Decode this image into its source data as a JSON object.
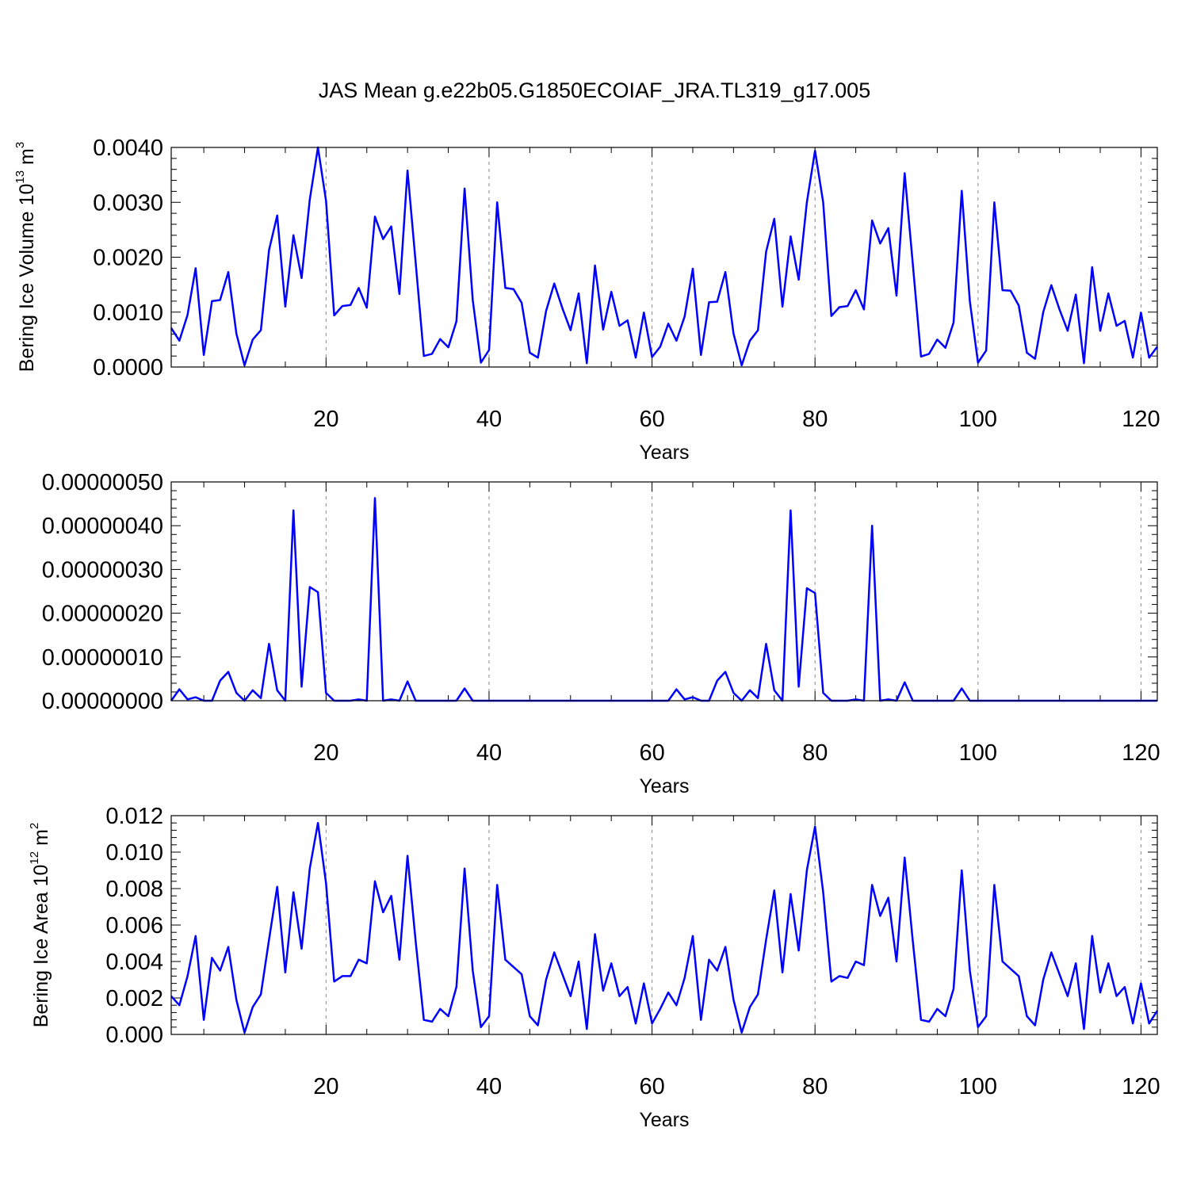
{
  "title": "JAS Mean g.e22b05.G1850ECOIAF_JRA.TL319_g17.005",
  "line_color": "#0000ff",
  "grid_color": "#888888",
  "chart_data": [
    {
      "type": "line",
      "ylabel_parts": [
        "Bering Ice Volume 10",
        "13",
        " m",
        "3"
      ],
      "xlabel": "Years",
      "xlim": [
        1,
        122
      ],
      "ylim": [
        0,
        0.004
      ],
      "x_ticks": [
        20,
        40,
        60,
        80,
        100,
        120
      ],
      "y_ticks": [
        0,
        0.001,
        0.002,
        0.003,
        0.004
      ],
      "y_tick_labels": [
        "0.0000",
        "0.0010",
        "0.0020",
        "0.0030",
        "0.0040"
      ],
      "grid": "vertical dashed at major x ticks",
      "series": [
        {
          "values": [
            0.00071,
            0.00048,
            0.00095,
            0.0018,
            0.00022,
            0.0012,
            0.00122,
            0.00173,
            0.00061,
            3e-05,
            0.0005,
            0.00067,
            0.00213,
            0.00276,
            0.0011,
            0.0024,
            0.00162,
            0.00305,
            0.004,
            0.00303,
            0.00094,
            0.00111,
            0.00113,
            0.00144,
            0.00108,
            0.00274,
            0.00233,
            0.00256,
            0.00133,
            0.00358,
            0.0019,
            0.0002,
            0.00024,
            0.00051,
            0.00036,
            0.00083,
            0.00325,
            0.00122,
            8e-05,
            0.00031,
            0.003,
            0.00144,
            0.00142,
            0.00117,
            0.00026,
            0.00017,
            0.00102,
            0.00152,
            0.00107,
            0.00067,
            0.00134,
            7e-05,
            0.00185,
            0.00068,
            0.00137,
            0.00075,
            0.00085,
            0.00017,
            0.00099,
            0.00018,
            0.00037,
            0.00079,
            0.00048,
            0.00092,
            0.00179,
            0.00022,
            0.00118,
            0.00119,
            0.00173,
            0.00061,
            3e-05,
            0.00048,
            0.00067,
            0.0021,
            0.0027,
            0.0011,
            0.00238,
            0.00159,
            0.003,
            0.00394,
            0.003,
            0.00093,
            0.00109,
            0.00111,
            0.0014,
            0.00105,
            0.00267,
            0.00225,
            0.00253,
            0.0013,
            0.00353,
            0.00187,
            0.00019,
            0.00024,
            0.0005,
            0.00035,
            0.00081,
            0.00321,
            0.0012,
            8e-05,
            0.0003,
            0.003,
            0.0014,
            0.00139,
            0.00112,
            0.00026,
            0.00015,
            0.001,
            0.00149,
            0.00105,
            0.00066,
            0.00132,
            7e-05,
            0.00182,
            0.00066,
            0.00134,
            0.00075,
            0.00084,
            0.00017,
            0.00099,
            0.00017,
            0.00037
          ]
        }
      ]
    },
    {
      "type": "line",
      "ylabel_parts": [],
      "xlabel": "Years",
      "xlim": [
        1,
        122
      ],
      "ylim": [
        0,
        5e-07
      ],
      "x_ticks": [
        20,
        40,
        60,
        80,
        100,
        120
      ],
      "y_ticks": [
        0,
        1e-07,
        2e-07,
        3e-07,
        4e-07,
        5e-07
      ],
      "y_tick_labels": [
        "0.00000000",
        "0.00000010",
        "0.00000020",
        "0.00000030",
        "0.00000040",
        "0.00000050"
      ],
      "grid": "vertical dashed at major x ticks",
      "series": [
        {
          "values": [
            0,
            2.6e-08,
            3e-09,
            8e-09,
            0,
            0,
            4.6e-08,
            6.6e-08,
            1.8e-08,
            0,
            2.4e-08,
            6e-09,
            1.3e-07,
            2.4e-08,
            0,
            4.35e-07,
            3.2e-08,
            2.6e-07,
            2.48e-07,
            1.8e-08,
            0,
            0,
            0,
            3e-09,
            0,
            4.63e-07,
            0,
            3e-09,
            0,
            4.4e-08,
            0,
            0,
            0,
            0,
            0,
            0,
            2.8e-08,
            0,
            0,
            0,
            0,
            0,
            0,
            0,
            0,
            0,
            0,
            0,
            0,
            0,
            0,
            0,
            0,
            0,
            0,
            0,
            0,
            0,
            0,
            0,
            0,
            0,
            2.6e-08,
            3e-09,
            8e-09,
            0,
            0,
            4.6e-08,
            6.6e-08,
            1.8e-08,
            0,
            2.4e-08,
            6e-09,
            1.3e-07,
            2.4e-08,
            0,
            4.35e-07,
            3.2e-08,
            2.57e-07,
            2.46e-07,
            1.8e-08,
            0,
            0,
            0,
            3e-09,
            0,
            4e-07,
            0,
            3e-09,
            0,
            4.2e-08,
            0,
            0,
            0,
            0,
            0,
            0,
            2.8e-08,
            0,
            0,
            0,
            0,
            0,
            0,
            0,
            0,
            0,
            0,
            0,
            0,
            0,
            0,
            0,
            0,
            0,
            0,
            0,
            0,
            0,
            0,
            0,
            0
          ]
        }
      ]
    },
    {
      "type": "line",
      "ylabel_parts": [
        "Bering Ice Area 10",
        "12",
        " m",
        "2"
      ],
      "xlabel": "Years",
      "xlim": [
        1,
        122
      ],
      "ylim": [
        0,
        0.012
      ],
      "x_ticks": [
        20,
        40,
        60,
        80,
        100,
        120
      ],
      "y_ticks": [
        0,
        0.002,
        0.004,
        0.006,
        0.008,
        0.01,
        0.012
      ],
      "y_tick_labels": [
        "0.000",
        "0.002",
        "0.004",
        "0.006",
        "0.008",
        "0.010",
        "0.012"
      ],
      "grid": "vertical dashed at major x ticks",
      "series": [
        {
          "values": [
            0.0021,
            0.0016,
            0.0032,
            0.0054,
            0.0008,
            0.0042,
            0.0035,
            0.0048,
            0.0019,
            0.0001,
            0.0015,
            0.0022,
            0.0052,
            0.0081,
            0.0034,
            0.0078,
            0.0047,
            0.0091,
            0.0116,
            0.0083,
            0.0029,
            0.0032,
            0.0032,
            0.0041,
            0.0039,
            0.0084,
            0.0067,
            0.0076,
            0.0041,
            0.0098,
            0.0051,
            0.0008,
            0.0007,
            0.0014,
            0.001,
            0.0026,
            0.0091,
            0.0035,
            0.0004,
            0.001,
            0.0082,
            0.0041,
            0.0037,
            0.0033,
            0.001,
            0.0005,
            0.003,
            0.0045,
            0.0033,
            0.0021,
            0.004,
            0.0003,
            0.0055,
            0.0024,
            0.0039,
            0.0021,
            0.0026,
            0.0006,
            0.0028,
            0.0006,
            0.0014,
            0.0023,
            0.0016,
            0.0031,
            0.0054,
            0.0008,
            0.0041,
            0.0035,
            0.0048,
            0.0019,
            0.0001,
            0.0015,
            0.0022,
            0.0052,
            0.0079,
            0.0034,
            0.0077,
            0.0046,
            0.009,
            0.0114,
            0.0078,
            0.0029,
            0.0032,
            0.0031,
            0.004,
            0.0038,
            0.0082,
            0.0065,
            0.0075,
            0.004,
            0.0097,
            0.0051,
            0.0008,
            0.0007,
            0.0014,
            0.001,
            0.0025,
            0.009,
            0.0035,
            0.0004,
            0.001,
            0.0082,
            0.004,
            0.0036,
            0.0032,
            0.001,
            0.0005,
            0.003,
            0.0045,
            0.0033,
            0.0021,
            0.0039,
            0.0003,
            0.0054,
            0.0023,
            0.0039,
            0.0021,
            0.0026,
            0.0006,
            0.0028,
            0.0006,
            0.0013
          ]
        }
      ]
    }
  ]
}
